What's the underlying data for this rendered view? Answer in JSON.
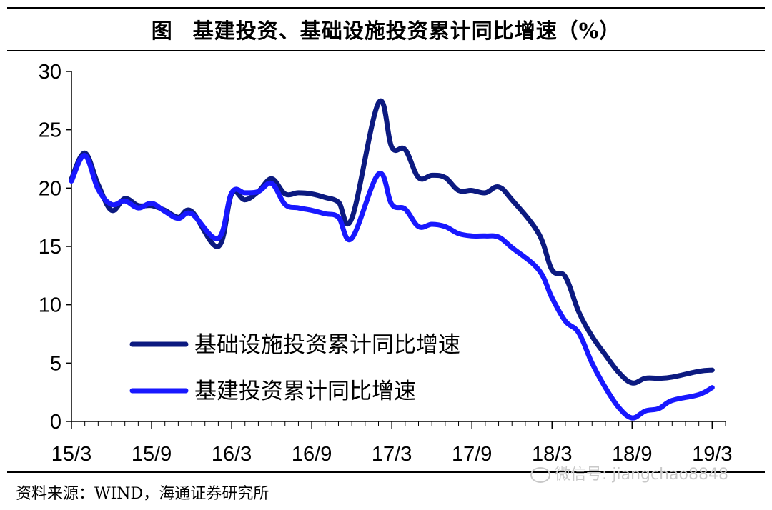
{
  "header": {
    "figure_label": "图",
    "title": "基建投资、基础设施投资累计同比增速（%）"
  },
  "footer": {
    "source": "资料来源：WIND，海通证券研究所",
    "watermark": "微信号: jiangchao8848"
  },
  "colors": {
    "series_dark": "#0c1a80",
    "series_blue": "#1818ff",
    "axis": "#000000"
  },
  "chart_data": {
    "type": "line",
    "title": "基建投资、基础设施投资累计同比增速（%）",
    "xlabel": "",
    "ylabel": "",
    "ylim": [
      0,
      30
    ],
    "yticks": [
      "0",
      "5",
      "10",
      "15",
      "20",
      "25",
      "30"
    ],
    "xlim": [
      "15/3",
      "19/4"
    ],
    "xticks": [
      "15/3",
      "15/9",
      "16/3",
      "16/9",
      "17/3",
      "17/9",
      "18/3",
      "18/9",
      "19/3"
    ],
    "grid": false,
    "legend": "lower-left",
    "series": [
      {
        "name": "基础设施投资累计同比增速",
        "color": "#0c1a80",
        "points": [
          [
            "15/3",
            20.8
          ],
          [
            "15/4",
            23.0
          ],
          [
            "15/5",
            20.3
          ],
          [
            "15/6",
            18.1
          ],
          [
            "15/7",
            19.1
          ],
          [
            "15/8",
            18.5
          ],
          [
            "15/9",
            18.5
          ],
          [
            "15/10",
            18.1
          ],
          [
            "15/11",
            17.5
          ],
          [
            "15/12",
            18.0
          ],
          [
            "16/2",
            15.0
          ],
          [
            "16/3",
            19.5
          ],
          [
            "16/4",
            19.0
          ],
          [
            "16/5",
            19.7
          ],
          [
            "16/6",
            20.8
          ],
          [
            "16/7",
            19.5
          ],
          [
            "16/8",
            19.6
          ],
          [
            "16/9",
            19.5
          ],
          [
            "16/10",
            19.2
          ],
          [
            "16/11",
            18.8
          ],
          [
            "16/12",
            17.4
          ],
          [
            "17/2",
            27.3
          ],
          [
            "17/3",
            23.5
          ],
          [
            "17/4",
            23.3
          ],
          [
            "17/5",
            20.9
          ],
          [
            "17/6",
            21.1
          ],
          [
            "17/7",
            20.9
          ],
          [
            "17/8",
            19.8
          ],
          [
            "17/9",
            19.8
          ],
          [
            "17/10",
            19.6
          ],
          [
            "17/11",
            20.1
          ],
          [
            "17/12",
            19.0
          ],
          [
            "18/2",
            16.1
          ],
          [
            "18/3",
            13.0
          ],
          [
            "18/4",
            12.4
          ],
          [
            "18/5",
            9.4
          ],
          [
            "18/6",
            7.3
          ],
          [
            "18/7",
            5.7
          ],
          [
            "18/8",
            4.2
          ],
          [
            "18/9",
            3.3
          ],
          [
            "18/10",
            3.7
          ],
          [
            "18/11",
            3.7
          ],
          [
            "18/12",
            3.8
          ],
          [
            "19/2",
            4.3
          ],
          [
            "19/3",
            4.4
          ]
        ]
      },
      {
        "name": "基建投资累计同比增速",
        "color": "#1818ff",
        "points": [
          [
            "15/3",
            20.6
          ],
          [
            "15/4",
            22.8
          ],
          [
            "15/5",
            19.9
          ],
          [
            "15/6",
            18.6
          ],
          [
            "15/7",
            18.9
          ],
          [
            "15/8",
            18.3
          ],
          [
            "15/9",
            18.7
          ],
          [
            "15/10",
            18.0
          ],
          [
            "15/11",
            17.4
          ],
          [
            "15/12",
            17.8
          ],
          [
            "16/2",
            15.7
          ],
          [
            "16/3",
            19.6
          ],
          [
            "16/4",
            19.6
          ],
          [
            "16/5",
            19.7
          ],
          [
            "16/6",
            20.4
          ],
          [
            "16/7",
            18.6
          ],
          [
            "16/8",
            18.3
          ],
          [
            "16/9",
            18.1
          ],
          [
            "16/10",
            17.8
          ],
          [
            "16/11",
            17.5
          ],
          [
            "16/12",
            15.7
          ],
          [
            "17/2",
            21.2
          ],
          [
            "17/3",
            18.6
          ],
          [
            "17/4",
            18.2
          ],
          [
            "17/5",
            16.7
          ],
          [
            "17/6",
            16.9
          ],
          [
            "17/7",
            16.7
          ],
          [
            "17/8",
            16.1
          ],
          [
            "17/9",
            15.9
          ],
          [
            "17/10",
            15.9
          ],
          [
            "17/11",
            15.8
          ],
          [
            "17/12",
            14.9
          ],
          [
            "18/2",
            13.0
          ],
          [
            "18/3",
            10.6
          ],
          [
            "18/4",
            8.6
          ],
          [
            "18/5",
            7.6
          ],
          [
            "18/6",
            5.0
          ],
          [
            "18/7",
            2.9
          ],
          [
            "18/8",
            1.2
          ],
          [
            "18/9",
            0.3
          ],
          [
            "18/10",
            0.9
          ],
          [
            "18/11",
            1.1
          ],
          [
            "18/12",
            1.8
          ],
          [
            "19/2",
            2.3
          ],
          [
            "19/3",
            2.9
          ]
        ]
      }
    ]
  }
}
